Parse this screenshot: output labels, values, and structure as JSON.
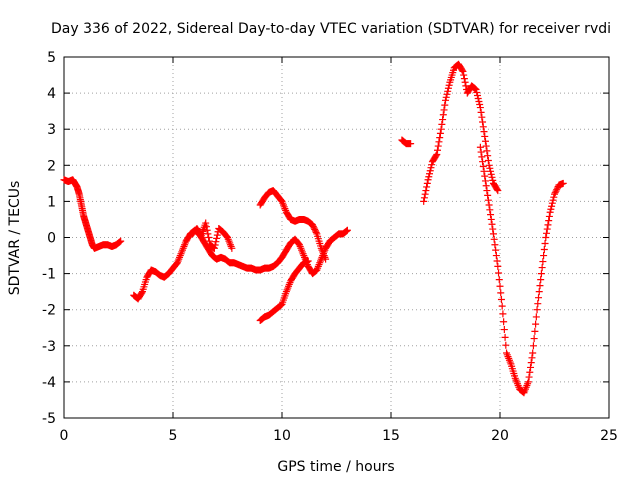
{
  "chart_data": {
    "type": "scatter",
    "title": "Day 336 of 2022, Sidereal Day-to-day VTEC variation (SDTVAR) for receiver rvdi",
    "xlabel": "GPS time / hours",
    "ylabel": "SDTVAR / TECUs",
    "xlim": [
      0,
      25
    ],
    "ylim": [
      -5,
      5
    ],
    "xticks": [
      0,
      5,
      10,
      15,
      20,
      25
    ],
    "yticks": [
      -5,
      -4,
      -3,
      -2,
      -1,
      0,
      1,
      2,
      3,
      4,
      5
    ],
    "grid": true,
    "marker": "plus",
    "color": "#ff0000",
    "series": [
      {
        "name": "segment-1",
        "x": [
          0.0,
          0.2,
          0.4,
          0.5,
          0.6,
          0.7,
          0.8,
          0.9,
          1.0,
          1.1,
          1.2,
          1.3,
          1.4,
          1.6,
          1.8,
          2.0,
          2.2,
          2.4,
          2.6
        ],
        "y": [
          1.6,
          1.55,
          1.6,
          1.5,
          1.4,
          1.2,
          0.9,
          0.6,
          0.4,
          0.2,
          0.0,
          -0.2,
          -0.3,
          -0.25,
          -0.2,
          -0.2,
          -0.25,
          -0.2,
          -0.1
        ]
      },
      {
        "name": "segment-2",
        "x": [
          3.2,
          3.4,
          3.6,
          3.8,
          4.0,
          4.2,
          4.4,
          4.6,
          4.8,
          5.0,
          5.2,
          5.4,
          5.6,
          5.8,
          6.0,
          6.2,
          6.4,
          6.6,
          6.8,
          7.0,
          7.2,
          7.4,
          7.6,
          7.8,
          8.0,
          8.2,
          8.4,
          8.6,
          8.8,
          9.0,
          9.2,
          9.4,
          9.6,
          9.8,
          10.0,
          10.2,
          10.4,
          10.6,
          10.8,
          11.0,
          11.2,
          11.4,
          11.6,
          11.8,
          12.0,
          12.2,
          12.4,
          12.6,
          12.8,
          13.0
        ],
        "y": [
          -1.6,
          -1.7,
          -1.5,
          -1.1,
          -0.9,
          -0.95,
          -1.05,
          -1.1,
          -1.0,
          -0.85,
          -0.7,
          -0.4,
          -0.1,
          0.1,
          0.2,
          0.1,
          -0.1,
          -0.3,
          -0.5,
          -0.6,
          -0.55,
          -0.6,
          -0.7,
          -0.7,
          -0.75,
          -0.8,
          -0.85,
          -0.85,
          -0.9,
          -0.9,
          -0.85,
          -0.85,
          -0.8,
          -0.7,
          -0.55,
          -0.35,
          -0.15,
          -0.05,
          -0.2,
          -0.5,
          -0.8,
          -1.0,
          -0.9,
          -0.6,
          -0.3,
          -0.1,
          0.0,
          0.1,
          0.1,
          0.2
        ]
      },
      {
        "name": "segment-3",
        "x": [
          5.9,
          6.1,
          6.3,
          6.5,
          6.7,
          6.9,
          7.1,
          7.3,
          7.5,
          7.7
        ],
        "y": [
          0.1,
          0.25,
          0.05,
          0.4,
          -0.2,
          -0.3,
          0.25,
          0.15,
          0.0,
          -0.3
        ]
      },
      {
        "name": "segment-4",
        "x": [
          9.0,
          9.2,
          9.4,
          9.6,
          9.8,
          10.0,
          10.2,
          10.4,
          10.6,
          10.8,
          11.0,
          11.2,
          11.4,
          11.6,
          11.8,
          12.0
        ],
        "y": [
          0.9,
          1.1,
          1.25,
          1.3,
          1.15,
          1.0,
          0.7,
          0.5,
          0.45,
          0.5,
          0.5,
          0.45,
          0.35,
          0.1,
          -0.3,
          -0.6
        ]
      },
      {
        "name": "segment-5",
        "x": [
          9.0,
          9.2,
          9.4,
          9.6,
          9.8,
          10.0,
          10.2,
          10.4,
          10.6,
          10.8,
          11.0,
          11.2
        ],
        "y": [
          -2.3,
          -2.2,
          -2.15,
          -2.05,
          -1.95,
          -1.85,
          -1.5,
          -1.2,
          -1.0,
          -0.85,
          -0.7,
          -0.65
        ]
      },
      {
        "name": "segment-6",
        "x": [
          15.5,
          15.7,
          15.9
        ],
        "y": [
          2.7,
          2.6,
          2.6
        ]
      },
      {
        "name": "segment-7",
        "x": [
          16.5,
          16.7,
          16.9,
          17.1,
          17.3,
          17.5,
          17.7,
          17.9,
          18.1,
          18.3,
          18.5,
          18.7,
          18.9,
          19.1,
          19.3,
          19.5,
          19.7,
          19.9
        ],
        "y": [
          1.0,
          1.6,
          2.1,
          2.3,
          3.0,
          3.8,
          4.3,
          4.7,
          4.8,
          4.6,
          4.0,
          4.2,
          4.1,
          3.6,
          2.8,
          2.0,
          1.5,
          1.3
        ]
      },
      {
        "name": "segment-8",
        "x": [
          19.1,
          19.3,
          19.5,
          19.7,
          19.9,
          20.1,
          20.3,
          20.5,
          20.7,
          20.9,
          21.1,
          21.3,
          21.5,
          21.7,
          21.9,
          22.1,
          22.3,
          22.5,
          22.7,
          22.9
        ],
        "y": [
          2.5,
          1.7,
          0.9,
          0.1,
          -0.8,
          -1.9,
          -3.2,
          -3.5,
          -3.9,
          -4.2,
          -4.3,
          -4.0,
          -3.2,
          -2.0,
          -1.0,
          0.0,
          0.7,
          1.2,
          1.45,
          1.5
        ]
      }
    ]
  }
}
